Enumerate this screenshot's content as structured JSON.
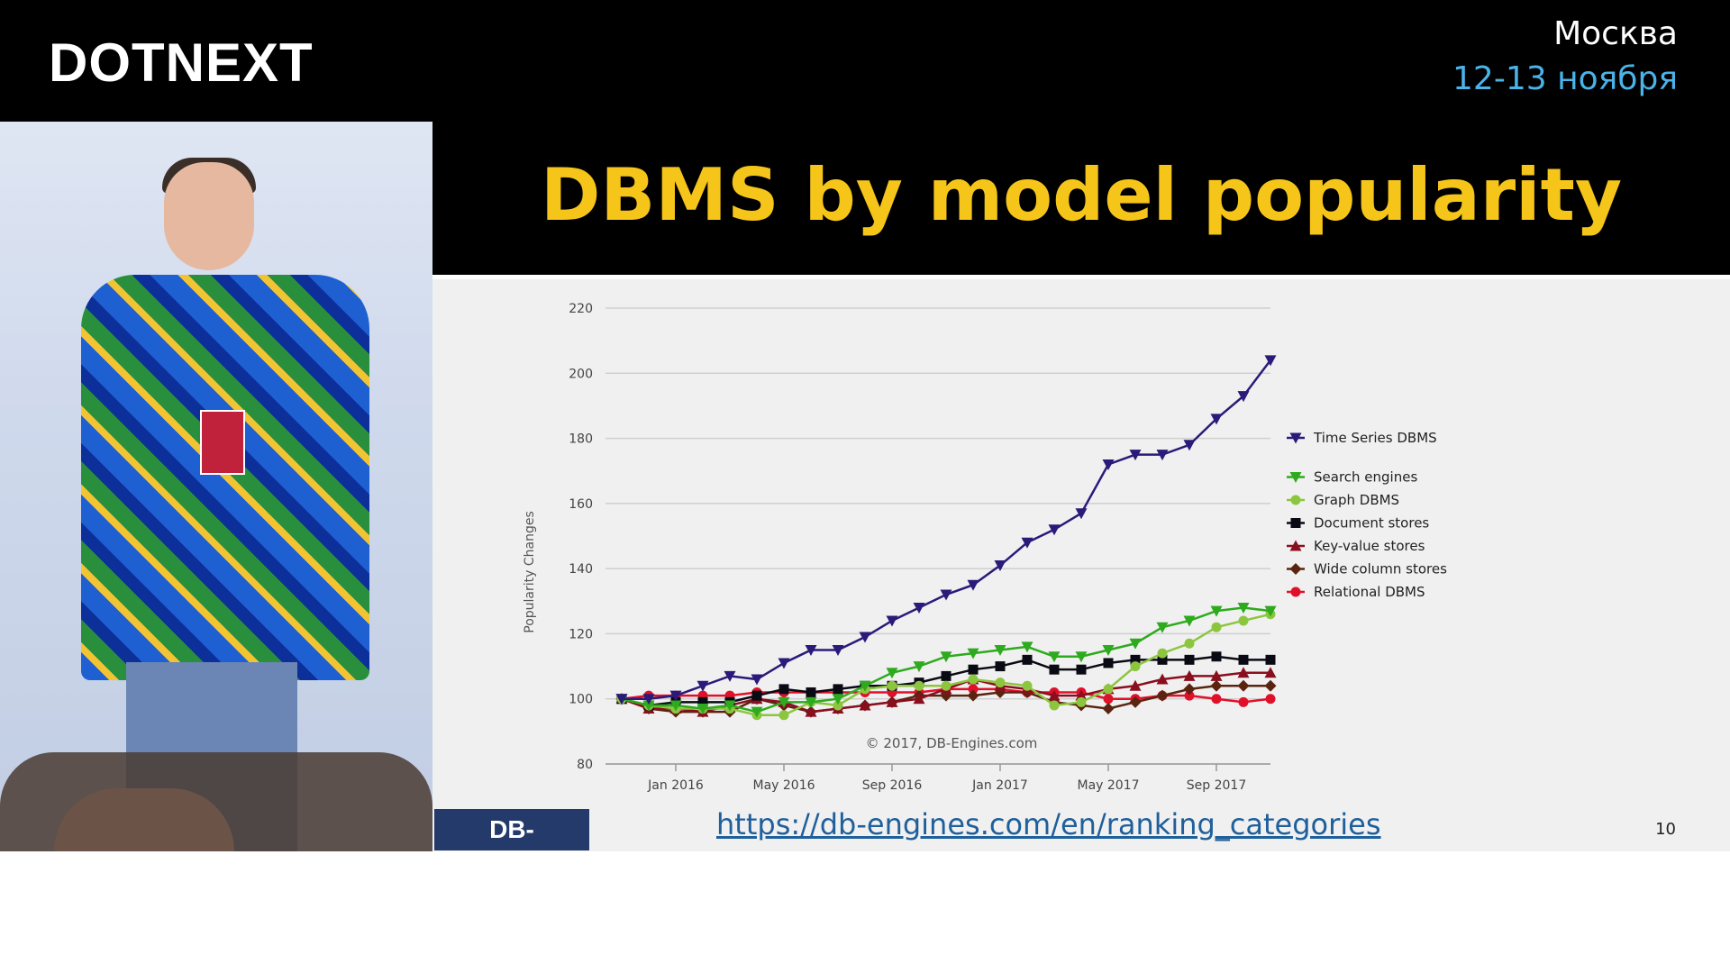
{
  "header": {
    "brand": "DOTNEXT",
    "city": "Москва",
    "dates": "12-13 ноября"
  },
  "slide": {
    "title": "DBMS by model popularity",
    "url": "https://db-engines.com/en/ranking_categories",
    "page_number": "10",
    "logo_text": "DB-ENGINES",
    "title_color": "#f5c51a",
    "url_color": "#1f5f9b"
  },
  "chart_data": {
    "type": "line",
    "title": "",
    "xlabel": "",
    "ylabel": "Popularity Changes",
    "ylim": [
      80,
      220
    ],
    "yticks": [
      80,
      100,
      120,
      140,
      160,
      180,
      200,
      220
    ],
    "x_range": [
      "2015-11",
      "2017-12"
    ],
    "xticks": [
      "Jan 2016",
      "May 2016",
      "Sep 2016",
      "Jan 2017",
      "May 2017",
      "Sep 2017"
    ],
    "xtick_positions": [
      2,
      6,
      10,
      14,
      18,
      22
    ],
    "x_points": 25,
    "credit": "© 2017, DB-Engines.com",
    "grid": true,
    "legend_position": "right",
    "series": [
      {
        "name": "Time Series DBMS",
        "color": "#2b1a7a",
        "marker": "triangle-down",
        "values": [
          100,
          100,
          101,
          104,
          107,
          106,
          111,
          115,
          115,
          119,
          124,
          128,
          132,
          135,
          141,
          148,
          152,
          157,
          172,
          175,
          175,
          178,
          186,
          193,
          204
        ]
      },
      {
        "name": "Search engines",
        "color": "#2eaa1e",
        "marker": "triangle-down",
        "values": [
          100,
          98,
          98,
          97,
          98,
          96,
          99,
          99,
          100,
          104,
          108,
          110,
          113,
          114,
          115,
          116,
          113,
          113,
          115,
          117,
          122,
          124,
          127,
          128,
          127
        ]
      },
      {
        "name": "Graph DBMS",
        "color": "#8cc63e",
        "marker": "circle",
        "values": [
          100,
          98,
          97,
          97,
          97,
          95,
          95,
          99,
          98,
          103,
          104,
          104,
          104,
          106,
          105,
          104,
          98,
          99,
          103,
          110,
          114,
          117,
          122,
          124,
          126
        ]
      },
      {
        "name": "Document stores",
        "color": "#0a0a14",
        "marker": "square",
        "values": [
          100,
          98,
          99,
          99,
          99,
          101,
          103,
          102,
          103,
          104,
          104,
          105,
          107,
          109,
          110,
          112,
          109,
          109,
          111,
          112,
          112,
          112,
          113,
          112,
          112
        ]
      },
      {
        "name": "Key-value stores",
        "color": "#8a0f1e",
        "marker": "triangle-up",
        "values": [
          100,
          97,
          97,
          96,
          98,
          100,
          99,
          96,
          97,
          98,
          99,
          100,
          103,
          106,
          104,
          103,
          101,
          101,
          103,
          104,
          106,
          107,
          107,
          108,
          108
        ]
      },
      {
        "name": "Wide column stores",
        "color": "#5a2410",
        "marker": "diamond",
        "values": [
          100,
          97,
          96,
          96,
          96,
          100,
          98,
          96,
          97,
          98,
          99,
          101,
          101,
          101,
          102,
          102,
          99,
          98,
          97,
          99,
          101,
          103,
          104,
          104,
          104
        ]
      },
      {
        "name": "Relational DBMS",
        "color": "#e0102a",
        "marker": "circle",
        "values": [
          100,
          101,
          101,
          101,
          101,
          102,
          102,
          102,
          102,
          102,
          102,
          102,
          103,
          103,
          103,
          102,
          102,
          102,
          100,
          100,
          101,
          101,
          100,
          99,
          100
        ]
      }
    ]
  }
}
